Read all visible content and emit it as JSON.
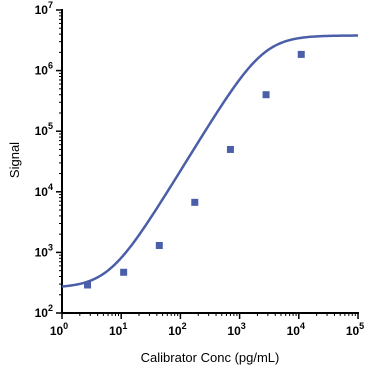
{
  "chart_data": {
    "type": "scatter",
    "title": "",
    "xlabel": "Calibrator Conc (pg/mL)",
    "ylabel": "Signal",
    "x_scale": "log",
    "y_scale": "log",
    "xlim": [
      1,
      100000
    ],
    "ylim": [
      100,
      10000000
    ],
    "x_ticks": [
      {
        "value": 1,
        "base": "10",
        "exp": "0"
      },
      {
        "value": 10,
        "base": "10",
        "exp": "1"
      },
      {
        "value": 100,
        "base": "10",
        "exp": "2"
      },
      {
        "value": 1000,
        "base": "10",
        "exp": "3"
      },
      {
        "value": 10000,
        "base": "10",
        "exp": "4"
      },
      {
        "value": 100000,
        "base": "10",
        "exp": "5"
      }
    ],
    "y_ticks": [
      {
        "value": 100,
        "base": "10",
        "exp": "2"
      },
      {
        "value": 1000,
        "base": "10",
        "exp": "3"
      },
      {
        "value": 10000,
        "base": "10",
        "exp": "4"
      },
      {
        "value": 100000,
        "base": "10",
        "exp": "5"
      },
      {
        "value": 1000000,
        "base": "10",
        "exp": "6"
      },
      {
        "value": 10000000,
        "base": "10",
        "exp": "7"
      }
    ],
    "grid": false,
    "series": [
      {
        "marker": "square",
        "color": "#4a5fa8",
        "points": [
          {
            "x": 2.7,
            "y": 290
          },
          {
            "x": 11,
            "y": 470
          },
          {
            "x": 44,
            "y": 1300
          },
          {
            "x": 175,
            "y": 6700
          },
          {
            "x": 700,
            "y": 50000
          },
          {
            "x": 2800,
            "y": 400000
          },
          {
            "x": 11000,
            "y": 1850000
          }
        ]
      }
    ],
    "fit_curve": {
      "model": "4PL",
      "bottom": 260,
      "top": 3800000,
      "ec50": 2500,
      "hill": 1.6,
      "color": "#4a5fa8"
    }
  }
}
